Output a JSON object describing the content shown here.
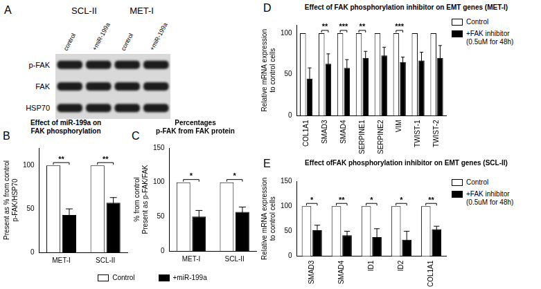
{
  "blot": {
    "panel": "A",
    "groups": [
      {
        "label": "SCL-II",
        "lanes": [
          "control",
          "+miR-199a"
        ]
      },
      {
        "label": "MET-I",
        "lanes": [
          "control",
          "+miR-199a"
        ]
      }
    ],
    "rows": [
      "p-FAK",
      "FAK",
      "HSP70"
    ]
  },
  "chart_data": [
    {
      "panel": "B",
      "type": "bar",
      "title": [
        "Effect of miR-199a on",
        "FAK phosphorylation"
      ],
      "ylabel": [
        "Present as % from control",
        "p-FAK/HSP70"
      ],
      "categories": [
        "MET-I",
        "SCL-II"
      ],
      "series": [
        {
          "name": "Control",
          "color": "#ffffff",
          "values": [
            100,
            100
          ]
        },
        {
          "name": "+miR-199a",
          "color": "#000000",
          "values": [
            43,
            57
          ],
          "errors": [
            7,
            6
          ]
        }
      ],
      "significance": [
        "**",
        "**"
      ],
      "ylim": [
        0,
        120
      ],
      "yticks": [
        0,
        50,
        100
      ],
      "grid": false,
      "legend": "bottom"
    },
    {
      "panel": "C",
      "type": "bar",
      "title": [
        "Percentages",
        "p-FAK from FAK protein"
      ],
      "ylabel": [
        "% from control",
        "Present as p-FAK/FAK"
      ],
      "categories": [
        "MET-I",
        "SCL-II"
      ],
      "series": [
        {
          "name": "Control",
          "color": "#ffffff",
          "values": [
            100,
            100
          ]
        },
        {
          "name": "+miR-199a",
          "color": "#000000",
          "values": [
            50,
            57
          ],
          "errors": [
            9,
            7
          ]
        }
      ],
      "significance": [
        "*",
        "*"
      ],
      "ylim": [
        0,
        150
      ],
      "yticks": [
        0,
        50,
        100,
        150
      ],
      "grid": false,
      "legend": "bottom"
    },
    {
      "panel": "D",
      "type": "bar",
      "title": [
        "Effect of FAK phosphorylation inhibitor on EMT genes (MET-I)"
      ],
      "ylabel": [
        "Relative mRNA expression",
        "to control cells"
      ],
      "categories": [
        "COL1A1",
        "SMAD3",
        "SMAD4",
        "SERPINE1",
        "SERPINE2",
        "VIM",
        "TWIST-1",
        "TWIST-2"
      ],
      "series": [
        {
          "name": "Control",
          "color": "#ffffff",
          "values": [
            100,
            100,
            100,
            100,
            100,
            100,
            100,
            100
          ]
        },
        {
          "name": "+FAK inhibitor\n(0.5uM for 48h)",
          "color": "#000000",
          "values": [
            45,
            63,
            58,
            70,
            73,
            65,
            67,
            70
          ],
          "errors": [
            13,
            12,
            10,
            8,
            10,
            6,
            10,
            15
          ]
        }
      ],
      "significance": [
        null,
        "**",
        "***",
        "**",
        null,
        "***",
        null,
        null
      ],
      "ylim": [
        0,
        110
      ],
      "yticks": [
        0,
        50,
        100
      ],
      "grid": false,
      "legend": "right"
    },
    {
      "panel": "E",
      "type": "bar",
      "title": [
        "Effect ofFAK phosphorylation inhibitor on EMT genes (SCL-II)"
      ],
      "ylabel": [
        "Relative mRNA expression",
        "to control cells"
      ],
      "categories": [
        "SMAD3",
        "SMAD4",
        "ID1",
        "ID2",
        "COL1A1"
      ],
      "series": [
        {
          "name": "Control",
          "color": "#ffffff",
          "values": [
            100,
            100,
            100,
            100,
            100
          ]
        },
        {
          "name": "+FAK inhibitor\n(0.5uM for 48h)",
          "color": "#000000",
          "values": [
            52,
            42,
            38,
            33,
            54
          ],
          "errors": [
            10,
            8,
            17,
            17,
            6
          ]
        }
      ],
      "significance": [
        "*",
        "**",
        "*",
        "*",
        "**"
      ],
      "ylim": [
        0,
        150
      ],
      "yticks": [
        0,
        50,
        100,
        150
      ],
      "grid": false,
      "legend": "right"
    }
  ]
}
